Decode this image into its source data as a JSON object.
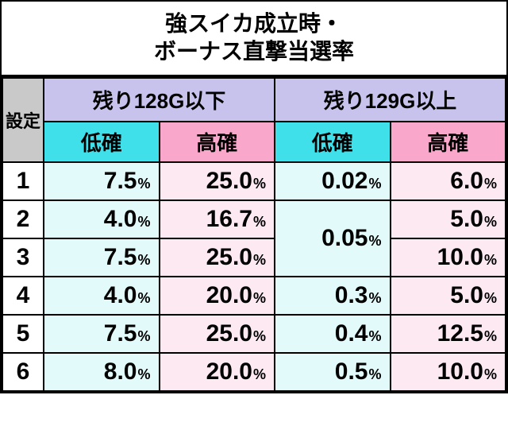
{
  "title_line1": "強スイカ成立時・",
  "title_line2": "ボーナス直撃当選率",
  "settei_label": "設定",
  "group_a": "残り128G以下",
  "group_b": "残り129G以上",
  "sub_low": "低確",
  "sub_high": "高確",
  "colors": {
    "group_head_bg": "#c7c3ed",
    "sub_cyan_bg": "#40e0ea",
    "sub_pink_bg": "#f9a8cc",
    "cell_cyan_bg": "#e3fafa",
    "cell_pink_bg": "#fce9f2",
    "settei_bg": "#c9c9c9",
    "border": "#000000",
    "title_bg": "#ffffff"
  },
  "rows": [
    {
      "label": "1",
      "a_low": "7.5",
      "a_high": "25.0",
      "b_low": "0.02",
      "b_high": "6.0"
    },
    {
      "label": "2",
      "a_low": "4.0",
      "a_high": "16.7",
      "b_low": "0.05",
      "b_high": "5.0"
    },
    {
      "label": "3",
      "a_low": "7.5",
      "a_high": "25.0",
      "b_low": "0.05",
      "b_high": "10.0"
    },
    {
      "label": "4",
      "a_low": "4.0",
      "a_high": "20.0",
      "b_low": "0.3",
      "b_high": "5.0"
    },
    {
      "label": "5",
      "a_low": "7.5",
      "a_high": "25.0",
      "b_low": "0.4",
      "b_high": "12.5"
    },
    {
      "label": "6",
      "a_low": "8.0",
      "a_high": "20.0",
      "b_low": "0.5",
      "b_high": "10.0"
    }
  ],
  "b_low_merge": {
    "start_row": 1,
    "span": 2,
    "value": "0.05"
  },
  "pct_suffix": "%"
}
